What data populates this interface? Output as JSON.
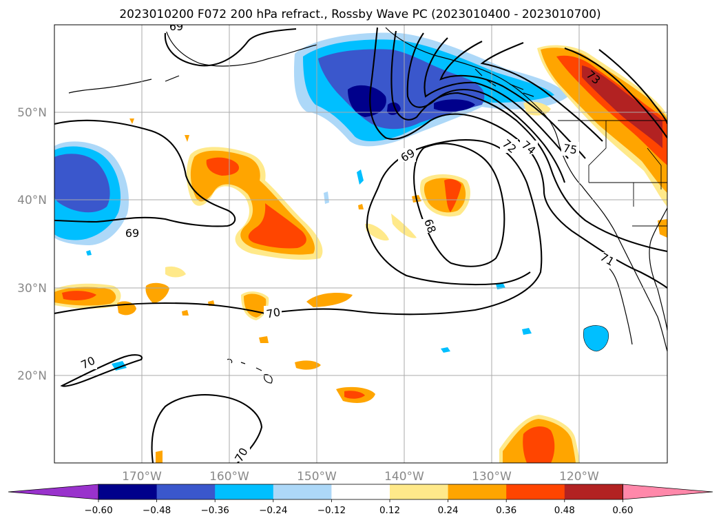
{
  "title": "2023010200 F072 200 hPa refract., Rossby Wave PC (2023010400 - 2023010700)",
  "map": {
    "lat_labels": [
      "50°N",
      "40°N",
      "30°N",
      "20°N"
    ],
    "lon_labels": [
      "170°W",
      "160°W",
      "150°W",
      "140°W",
      "130°W",
      "120°W"
    ],
    "contour_labels": [
      "69",
      "69",
      "70",
      "70",
      "70",
      "68",
      "72",
      "74",
      "75",
      "73",
      "71",
      "69"
    ]
  },
  "colorbar": {
    "ticks": [
      "−0.60",
      "−0.48",
      "−0.36",
      "−0.24",
      "−0.12",
      "0.12",
      "0.24",
      "0.36",
      "0.48",
      "0.60"
    ],
    "colors": [
      "#9932cc",
      "#00008b",
      "#3a57cc",
      "#00bfff",
      "#add8f8",
      "#ffffff",
      "#ffe98a",
      "#ffa500",
      "#ff4500",
      "#b22222",
      "#ff88aa"
    ]
  },
  "colors": {
    "fill_dark_blue": "#00008b",
    "fill_blue": "#3a57cc",
    "fill_sky": "#00bfff",
    "fill_light_blue": "#add8f8",
    "fill_yellow": "#ffe98a",
    "fill_orange": "#ffa500",
    "fill_red_orange": "#ff4500",
    "fill_dark_red": "#b22222",
    "grid": "#aaaaaa",
    "contour": "#000000",
    "land_outline": "#000000"
  }
}
